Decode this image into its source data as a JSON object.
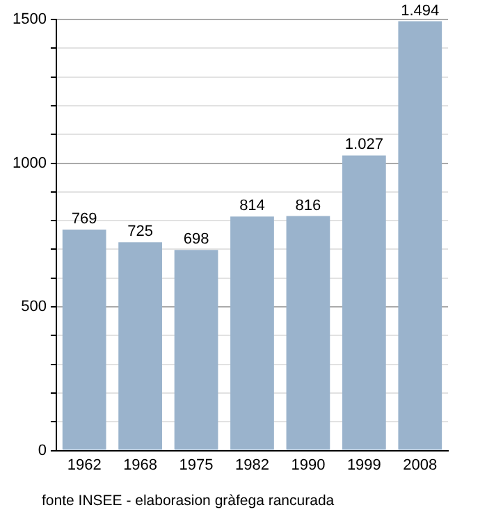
{
  "chart_data": {
    "type": "bar",
    "categories": [
      "1962",
      "1968",
      "1975",
      "1982",
      "1990",
      "1999",
      "2008"
    ],
    "values": [
      769,
      725,
      698,
      814,
      816,
      1027,
      1494
    ],
    "value_labels": [
      "769",
      "725",
      "698",
      "814",
      "816",
      "1.027",
      "1.494"
    ],
    "color": "#9ab3cc",
    "ylim": [
      0,
      1500
    ],
    "yticks": [
      0,
      {
        "value": 100,
        "label": null
      },
      {
        "value": 200,
        "label": null
      },
      {
        "value": 300,
        "label": null
      },
      {
        "value": 400,
        "label": null
      },
      500,
      {
        "value": 600,
        "label": null
      },
      {
        "value": 700,
        "label": null
      },
      {
        "value": 800,
        "label": null
      },
      {
        "value": 900,
        "label": null
      },
      1000,
      {
        "value": 1100,
        "label": null
      },
      {
        "value": 1200,
        "label": null
      },
      {
        "value": 1300,
        "label": null
      },
      {
        "value": 1400,
        "label": null
      },
      1500
    ],
    "grid": "y",
    "legend": false,
    "annotations": [
      "fonte INSEE - elaborasion gràfega rancurada"
    ]
  }
}
